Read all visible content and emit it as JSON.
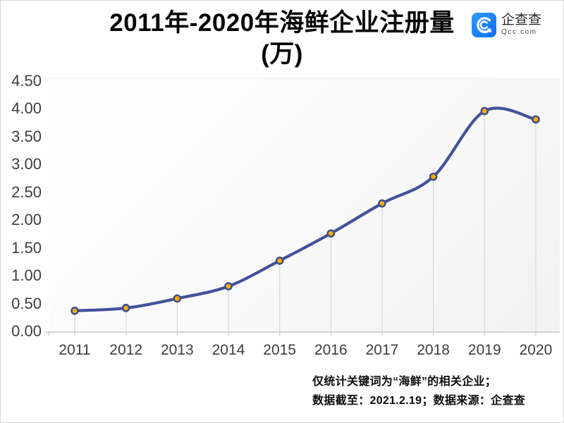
{
  "header": {
    "title_line1": "2011年-2020年海鲜企业注册量",
    "title_line2": "(万)",
    "logo": {
      "name": "企查查",
      "domain": "Qcc.com",
      "brand_color": "#1681fb"
    }
  },
  "chart_data": {
    "type": "line",
    "title": "2011年-2020年海鲜企业注册量(万)",
    "categories": [
      "2011",
      "2012",
      "2013",
      "2014",
      "2015",
      "2016",
      "2017",
      "2018",
      "2019",
      "2020"
    ],
    "values": [
      0.37,
      0.42,
      0.59,
      0.81,
      1.27,
      1.76,
      2.3,
      2.78,
      3.96,
      3.81
    ],
    "xlabel": "",
    "ylabel": "",
    "ylim": [
      0,
      4.5
    ],
    "ytick_labels": [
      "0.00",
      "0.50",
      "1.00",
      "1.50",
      "2.00",
      "2.50",
      "3.00",
      "3.50",
      "4.00",
      "4.50"
    ],
    "grid": false,
    "legend": "none",
    "smooth": true,
    "marker": "circle",
    "colors": {
      "line": "#41529b",
      "marker_fill": "#f5ab00",
      "marker_ring": "#3b4c93",
      "drop_line": "#d8d8d8",
      "axis_line": "#c9c9c9",
      "tick_text": "#3d3d3d"
    }
  },
  "footer": {
    "line1": "仅统计关键词为“海鲜”的相关企业；",
    "line2": "数据截至：2021.2.19；数据来源：企查查"
  }
}
